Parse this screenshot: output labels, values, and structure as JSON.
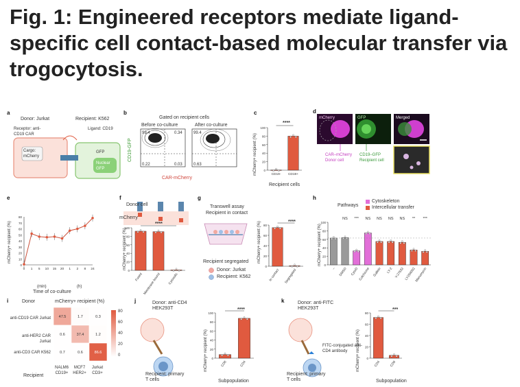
{
  "figure": {
    "title": "Fig. 1: Engineered receptors mediate ligand-specific cell contact-based molecular transfer via trogocytosis."
  },
  "panels": {
    "a": {
      "letter": "a",
      "donor": "Donor: Jurkat",
      "recipient": "Recipient: K562",
      "receptor": "Receptor: anti-CD19 CAR",
      "ligand": "Ligand: CD19",
      "cargo": "Cargo: mCherry",
      "gfp": "GFP",
      "nuclear_gfp": "Nuclear GFP"
    },
    "b": {
      "letter": "b",
      "gated": "Gated on recipient cells",
      "before": "Before co-culture",
      "after": "After co-culture",
      "ylabel": "CD19-GFP",
      "xlabel": "CAR-mCherry",
      "q_before": [
        "99.4",
        "0.34",
        "0.22",
        "0.03"
      ],
      "q_after": [
        "99.4",
        "",
        "0.63",
        ""
      ]
    },
    "c": {
      "letter": "c",
      "ylabel": "mCherry+ recipient (%)",
      "xlabel": "Recipient cells",
      "sig": "****"
    },
    "d": {
      "letter": "d",
      "ch1": "mCherry",
      "ch2": "GFP",
      "ch3": "Merged",
      "donor": "CAR–mCherry Donor cell",
      "recipient": "CD19–GFP Recipient cell"
    },
    "e": {
      "letter": "e",
      "ylabel": "mCherry+ recipient (%)",
      "xlabel": "Time of co-culture",
      "xunit1": "(min)",
      "xunit2": "(h)",
      "ticks_x": [
        "0",
        "1",
        "5",
        "10",
        "15",
        "20",
        "1",
        "2",
        "8",
        "24"
      ],
      "ticks_y": [
        "0",
        "10",
        "20",
        "30",
        "40",
        "50",
        "60",
        "70",
        "80"
      ]
    },
    "f": {
      "letter": "f",
      "donor": "Donor cell",
      "mcherry": "mCherry",
      "ylabel": "mCherry+ recipient (%)",
      "sig": "****",
      "cats": [
        "Fused",
        "Membrane bound",
        "Cytosolic"
      ]
    },
    "g": {
      "letter": "g",
      "assay": "Transwell assay",
      "contact": "Recipient in contact",
      "segregated": "Recipient segregated",
      "donor_leg": "Donor: Jurkat",
      "recip_leg": "Recipient: K562",
      "ylabel": "mCherry+ recipient (%)",
      "sig": "****",
      "cats": [
        "In contact",
        "Segregated"
      ]
    },
    "h": {
      "letter": "h",
      "pathways": "Pathways",
      "leg1": "Cytoskeleton",
      "leg2": "Intercellular transfer",
      "ylabel": "mCherry+ recipient (%)",
      "sigs": [
        "NS",
        "***",
        "NS",
        "NS",
        "NS",
        "NS",
        "**",
        "***"
      ],
      "cats": [
        "–",
        "DMSO",
        "CytoD",
        "Colchicine",
        "Gallein",
        "LY-2",
        "Y-27632",
        "LY294002",
        "Manumycin"
      ]
    },
    "i": {
      "letter": "i",
      "donor": "Donor",
      "header": "mCherry+ recipient (%)",
      "rows": [
        "anti-CD19 CAR Jurkat",
        "anti-HER2 CAR Jurkat",
        "anti-CD3 CAR K562"
      ],
      "cols": [
        "NALM6 CD19+",
        "MCF7 HER2+",
        "Jurkat CD3+"
      ],
      "recipient": "Recipient",
      "cells": [
        [
          "47.5",
          "1.7",
          "0.3"
        ],
        [
          "0.6",
          "37.4",
          "1.2"
        ],
        [
          "0.7",
          "0.6",
          "86.6"
        ]
      ],
      "scale": [
        "80",
        "60",
        "40",
        "20",
        "0"
      ]
    },
    "j": {
      "letter": "j",
      "donor": "Donor: anti-CD4 HEK293T",
      "recipient": "Recipient: primary T cells",
      "ylabel": "mCherry+ recipient (%)",
      "xlabel": "Subpopulation",
      "sig": "****",
      "cats": [
        "CD8",
        "CD4"
      ]
    },
    "k": {
      "letter": "k",
      "donor": "Donor: anti-FITC HEK293T",
      "antibody": "FITC-conjugated anti-CD4 antibody",
      "recipient": "Recipient: primary T cells",
      "ylabel": "mCherry+ recipient (%)",
      "xlabel": "Subpopulation",
      "sig": "***",
      "cats": [
        "CD4",
        "CD8"
      ]
    }
  },
  "chart_data": [
    {
      "type": "bar",
      "panel": "c",
      "categories": [
        "CD19-",
        "CD19+"
      ],
      "values": [
        0.5,
        80
      ],
      "ylim": [
        0,
        100
      ],
      "ticks_y": [
        "0",
        "20",
        "40",
        "60",
        "80",
        "100"
      ]
    },
    {
      "type": "line",
      "panel": "e",
      "x": [
        "0",
        "1",
        "5",
        "10",
        "15",
        "20",
        "1",
        "2",
        "8",
        "24"
      ],
      "values": [
        1,
        52,
        47,
        46,
        47,
        44,
        57,
        60,
        65,
        78
      ],
      "ylim": [
        0,
        80
      ]
    },
    {
      "type": "bar",
      "panel": "f",
      "categories": [
        "Fused",
        "Membrane bound",
        "Cytosolic"
      ],
      "values": [
        92,
        91,
        1
      ],
      "ylim": [
        0,
        100
      ],
      "ticks_y": [
        "0",
        "20",
        "40",
        "60",
        "80",
        "100"
      ]
    },
    {
      "type": "bar",
      "panel": "g",
      "categories": [
        "In contact",
        "Segregated"
      ],
      "values": [
        75,
        1
      ],
      "ylim": [
        0,
        80
      ],
      "ticks_y": [
        "0",
        "20",
        "40",
        "60",
        "80"
      ]
    },
    {
      "type": "bar",
      "panel": "h",
      "categories": [
        "–",
        "DMSO",
        "CytoD",
        "Colchicine",
        "Gallein",
        "LY-2",
        "Y-27632",
        "LY294002",
        "Manumycin"
      ],
      "values": [
        63,
        64,
        33,
        75,
        55,
        55,
        53,
        35,
        32
      ],
      "groups": [
        "none",
        "none",
        "cyto",
        "cyto",
        "transfer",
        "transfer",
        "transfer",
        "transfer",
        "transfer"
      ],
      "ylim": [
        0,
        100
      ],
      "ticks_y": [
        "0",
        "20",
        "40",
        "60",
        "80",
        "100"
      ]
    },
    {
      "type": "bar",
      "panel": "j",
      "categories": [
        "CD8",
        "CD4"
      ],
      "values": [
        8,
        88
      ],
      "ylim": [
        0,
        100
      ],
      "ticks_y": [
        "0",
        "20",
        "40",
        "60",
        "80",
        "100"
      ]
    },
    {
      "type": "bar",
      "panel": "k",
      "categories": [
        "CD4",
        "CD8"
      ],
      "values": [
        72,
        5
      ],
      "ylim": [
        0,
        80
      ],
      "ticks_y": [
        "0",
        "20",
        "40",
        "60",
        "80"
      ]
    }
  ],
  "colors": {
    "bar": "#e05a3f",
    "cyto": "#e26fd8",
    "gray": "#9a9a9a",
    "recipient": "#8ccf7a",
    "donor": "#f2b2a3"
  }
}
